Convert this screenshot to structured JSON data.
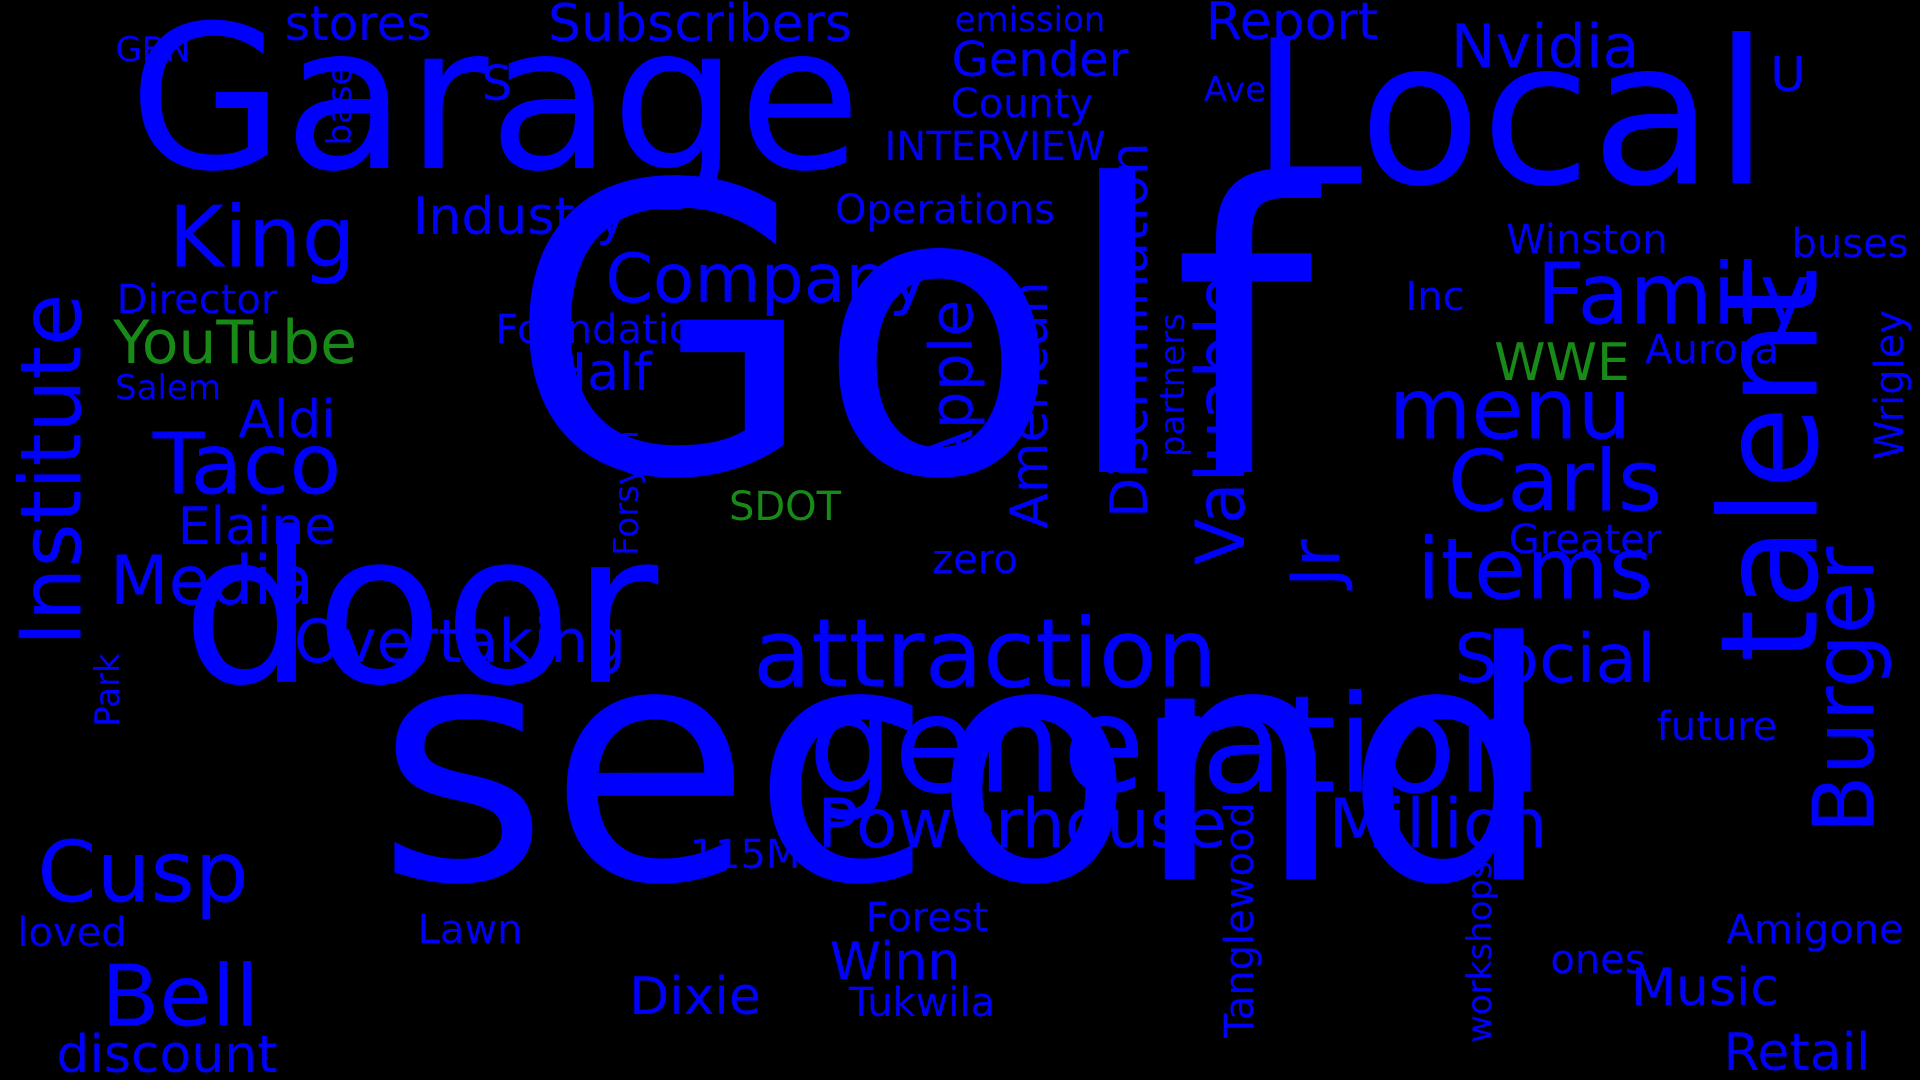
{
  "colors": {
    "background": "#000000",
    "primary_word": "#0000ff",
    "accent_word": "#178a17"
  },
  "words": {
    "golf": "Golf",
    "second": "second",
    "door": "door",
    "garage": "Garage",
    "local": "Local",
    "generation": "generation",
    "talent": "talent",
    "attraction": "attraction",
    "institute": "Institute",
    "burger": "Burger",
    "family": "Family",
    "items": "items",
    "menu": "menu",
    "carls": "Carls",
    "king": "King",
    "taco": "Taco",
    "cusp": "Cusp",
    "bell": "Bell",
    "company": "Company",
    "valuable": "Valuable",
    "jr": "Jr",
    "apple": "Apple",
    "discrimination": "Discrimination",
    "powerhouse": "Powerhouse",
    "million": "Million",
    "media": "Media",
    "overtaking": "Overtaking",
    "social": "Social",
    "nvidia": "Nvidia",
    "industry": "Industry",
    "american": "American",
    "subscribers": "Subscribers",
    "report": "Report",
    "gender": "Gender",
    "youtube": "YouTube",
    "aldi": "Aldi",
    "half": "Half",
    "elaine": "Elaine",
    "music": "Music",
    "retail": "Retail",
    "winn": "Winn",
    "dixie": "Dixie",
    "discount": "discount",
    "wwe": "WWE",
    "stores": "stores",
    "wrigley": "Wrigley",
    "u": "U",
    "s": "S",
    "sdot": "SDOT",
    "county": "County",
    "interview": "INTERVIEW",
    "operations": "Operations",
    "foundation": "Foundation",
    "winston": "Winston",
    "director": "Director",
    "forest": "Forest",
    "amigone": "Amigone",
    "tanglewood": "Tanglewood",
    "future": "future",
    "ones": "ones",
    "lawn": "Lawn",
    "tukwila": "Tukwila",
    "forsyth": "Forsyth",
    "zero": "zero",
    "greater": "Greater",
    "aurora": "Aurora",
    "inc": "Inc",
    "buses": "buses",
    "loved": "loved",
    "m115": "115M",
    "workshops": "workshops",
    "gbn": "GBN",
    "emission": "emission",
    "ave": "Ave",
    "base": "base",
    "salem": "Salem",
    "park": "Park",
    "partners": "partners"
  }
}
